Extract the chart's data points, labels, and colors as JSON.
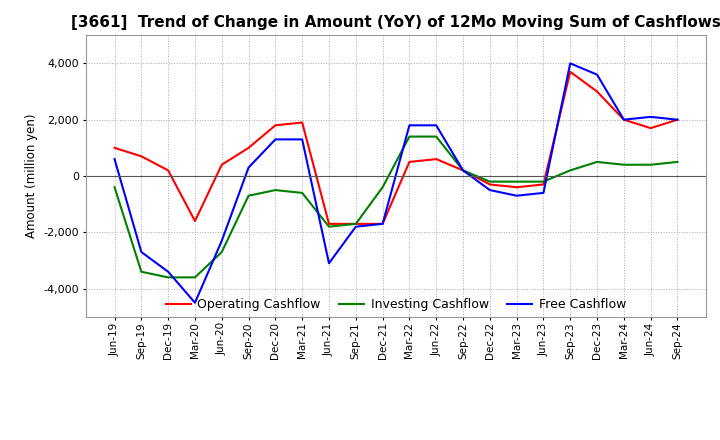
{
  "title": "[3661]  Trend of Change in Amount (YoY) of 12Mo Moving Sum of Cashflows",
  "ylabel": "Amount (million yen)",
  "x_labels": [
    "Jun-19",
    "Sep-19",
    "Dec-19",
    "Mar-20",
    "Jun-20",
    "Sep-20",
    "Dec-20",
    "Mar-21",
    "Jun-21",
    "Sep-21",
    "Dec-21",
    "Mar-22",
    "Jun-22",
    "Sep-22",
    "Dec-22",
    "Mar-23",
    "Jun-23",
    "Sep-23",
    "Dec-23",
    "Mar-24",
    "Jun-24",
    "Sep-24"
  ],
  "operating": [
    1000,
    700,
    200,
    -1600,
    400,
    1000,
    1800,
    1900,
    -1700,
    -1700,
    -1700,
    500,
    600,
    200,
    -300,
    -400,
    -300,
    3700,
    3000,
    2000,
    1700,
    2000
  ],
  "investing": [
    -400,
    -3400,
    -3600,
    -3600,
    -2700,
    -700,
    -500,
    -600,
    -1800,
    -1700,
    -400,
    1400,
    1400,
    200,
    -200,
    -200,
    -200,
    200,
    500,
    400,
    400,
    500
  ],
  "free": [
    600,
    -2700,
    -3400,
    -4500,
    -2300,
    300,
    1300,
    1300,
    -3100,
    -1800,
    -1700,
    1800,
    1800,
    200,
    -500,
    -700,
    -600,
    4000,
    3600,
    2000,
    2100,
    2000
  ],
  "op_color": "#ff0000",
  "inv_color": "#008000",
  "free_color": "#0000ff",
  "ylim": [
    -5000,
    5000
  ],
  "yticks": [
    -4000,
    -2000,
    0,
    2000,
    4000
  ],
  "background_color": "#ffffff",
  "grid_color": "#aaaaaa",
  "title_fontsize": 11,
  "legend_labels": [
    "Operating Cashflow",
    "Investing Cashflow",
    "Free Cashflow"
  ]
}
